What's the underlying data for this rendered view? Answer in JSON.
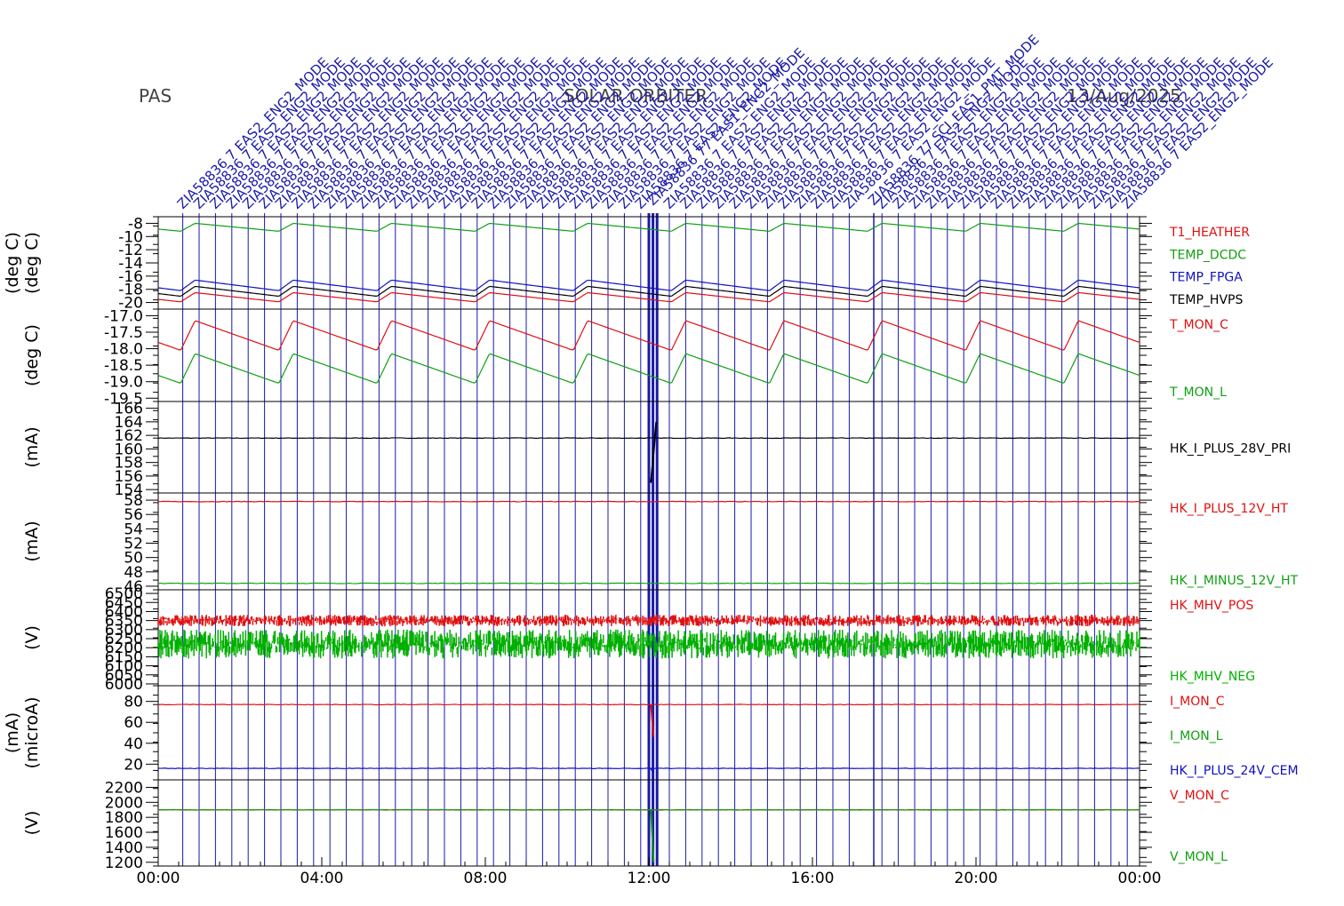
{
  "header": {
    "instrument": "PAS",
    "mission": "SOLAR ORBITER",
    "date": "13/Aug/2025"
  },
  "x_axis": {
    "ticks": [
      "00:00",
      "04:00",
      "08:00",
      "12:00",
      "16:00",
      "20:00",
      "00:00"
    ],
    "range_hours": [
      0,
      24
    ]
  },
  "event_markers": {
    "color": "#1a1aa8",
    "label_common": "ZIA58836 7 EAS2_ENG2_MODE",
    "hours": [
      0.6,
      1.0,
      1.4,
      1.8,
      2.2,
      2.6,
      3.0,
      3.4,
      3.8,
      4.2,
      4.6,
      5.0,
      5.4,
      5.8,
      6.2,
      6.6,
      7.0,
      7.4,
      7.8,
      8.2,
      8.6,
      9.0,
      9.4,
      9.8,
      10.2,
      10.6,
      11.0,
      11.4,
      11.8,
      12.5,
      12.9,
      13.3,
      13.7,
      14.1,
      14.5,
      14.9,
      15.3,
      15.7,
      16.1,
      16.5,
      16.9,
      17.7,
      18.1,
      18.5,
      18.9,
      19.3,
      19.7,
      20.1,
      20.5,
      20.9,
      21.3,
      21.7,
      22.1,
      22.5,
      22.9,
      23.3,
      23.7
    ],
    "bold_hours": [
      12.0,
      12.1,
      12.2
    ],
    "special": [
      {
        "hour": 12.1,
        "text": "ZIA58836 77 EAS1_ENG2_MODE"
      },
      {
        "hour": 17.5,
        "text": "ZIA58836 77 SCI_EAS1_PMT_MODE"
      }
    ]
  },
  "chart_data": [
    {
      "type": "line",
      "ylabel": "(deg C)",
      "ylabel2": "(deg C)",
      "yticks": [
        "-8",
        "-10",
        "-12",
        "-14",
        "-16",
        "-18",
        "-20"
      ],
      "ylim": [
        -21,
        -7
      ],
      "series": [
        {
          "name": "T1_HEATHER",
          "color": "#e01010",
          "base": -19.2,
          "amp": 1.4
        },
        {
          "name": "TEMP_DCDC",
          "color": "#10a010",
          "base": -8.6,
          "amp": 1.2
        },
        {
          "name": "TEMP_FPGA",
          "color": "#1010c0",
          "base": -17.4,
          "amp": 1.6
        },
        {
          "name": "TEMP_HVPS",
          "color": "#000000",
          "base": -18.3,
          "amp": 1.5
        }
      ]
    },
    {
      "type": "line",
      "ylabel": "(deg C)",
      "yticks": [
        "-17.0",
        "-17.5",
        "-18.0",
        "-18.5",
        "-19.0",
        "-19.5"
      ],
      "ylim": [
        -19.6,
        -16.8
      ],
      "series": [
        {
          "name": "T_MON_C",
          "color": "#e01010",
          "base": -17.6,
          "amp": 0.9
        },
        {
          "name": "T_MON_L",
          "color": "#10a010",
          "base": -18.6,
          "amp": 0.9
        }
      ]
    },
    {
      "type": "line",
      "ylabel": "(mA)",
      "yticks": [
        "166",
        "164",
        "162",
        "160",
        "158",
        "156",
        "154"
      ],
      "ylim": [
        153.5,
        167
      ],
      "series": [
        {
          "name": "HK_I_PLUS_28V_PRI",
          "color": "#000000",
          "value": 161.6,
          "spike": [
            155,
            164
          ]
        }
      ]
    },
    {
      "type": "line",
      "ylabel": "(mA)",
      "yticks": [
        "58",
        "56",
        "54",
        "52",
        "50",
        "48",
        "46"
      ],
      "ylim": [
        45.5,
        59
      ],
      "series": [
        {
          "name": "HK_I_PLUS_12V_HT",
          "color": "#e01010",
          "value": 57.8
        },
        {
          "name": "HK_I_MINUS_12V_HT",
          "color": "#10a010",
          "value": 46.4
        }
      ]
    },
    {
      "type": "line",
      "ylabel": "(V)",
      "yticks": [
        "6500",
        "6450",
        "6400",
        "6350",
        "6300",
        "6250",
        "6200",
        "6150",
        "6100",
        "6050",
        "6000"
      ],
      "ylim": [
        5990,
        6520
      ],
      "series": [
        {
          "name": "HK_MHV_POS",
          "color": "#e01010",
          "value": 6350,
          "noise": 40
        },
        {
          "name": "HK_MHV_NEG",
          "color": "#00b000",
          "value": 6220,
          "noise": 100
        }
      ]
    },
    {
      "type": "line",
      "ylabel": "(microA)",
      "ylabel2": "(mA)",
      "yticks": [
        "80",
        "60",
        "40",
        "20"
      ],
      "ylim": [
        5,
        95
      ],
      "series": [
        {
          "name": "I_MON_C",
          "color": "#e01010",
          "value": 77,
          "dip": 46
        },
        {
          "name": "I_MON_L",
          "color": "#10a010",
          "value": 0
        },
        {
          "name": "HK_I_PLUS_24V_CEM",
          "color": "#1010c0",
          "value": 16,
          "dip": 12
        }
      ]
    },
    {
      "type": "line",
      "ylabel": "(V)",
      "yticks": [
        "2200",
        "2000",
        "1800",
        "1600",
        "1400",
        "1200"
      ],
      "ylim": [
        1150,
        2300
      ],
      "series": [
        {
          "name": "V_MON_C",
          "color": "#e01010",
          "value": 1900
        },
        {
          "name": "V_MON_L",
          "color": "#10a010",
          "value": 1900,
          "dip": 1200
        }
      ]
    }
  ]
}
